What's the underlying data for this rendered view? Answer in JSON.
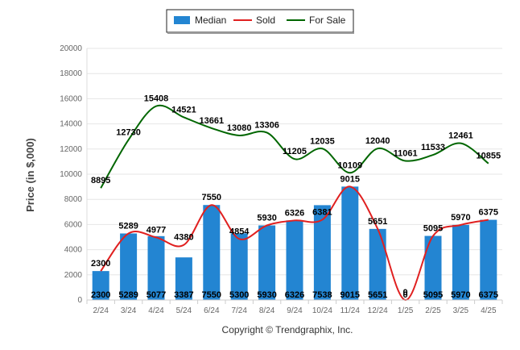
{
  "chart_data": {
    "type": "bar",
    "ylabel": "Price (in $,000)",
    "ylim": [
      0,
      20000
    ],
    "yticks": [
      0,
      2000,
      4000,
      6000,
      8000,
      10000,
      12000,
      14000,
      16000,
      18000,
      20000
    ],
    "categories": [
      "2/24",
      "3/24",
      "4/24",
      "5/24",
      "6/24",
      "7/24",
      "8/24",
      "9/24",
      "10/24",
      "11/24",
      "12/24",
      "1/25",
      "2/25",
      "3/25",
      "4/25"
    ],
    "series": [
      {
        "name": "Median",
        "kind": "bar",
        "color": "#2385d2",
        "values": [
          2300,
          5289,
          5077,
          3387,
          7550,
          5300,
          5930,
          6326,
          7538,
          9015,
          5651,
          0,
          5095,
          5970,
          6375
        ]
      },
      {
        "name": "Sold",
        "kind": "line",
        "color": "#e02020",
        "values": [
          2300,
          5289,
          4977,
          4380,
          7550,
          4854,
          5930,
          6326,
          6381,
          9015,
          5651,
          0,
          5095,
          5970,
          6375
        ]
      },
      {
        "name": "For Sale",
        "kind": "line",
        "color": "#006600",
        "values": [
          8895,
          12730,
          15408,
          14521,
          13661,
          13080,
          13306,
          11205,
          12035,
          10109,
          12040,
          11061,
          11533,
          12461,
          10855
        ]
      }
    ],
    "grid": true,
    "legend": "top-center",
    "copyright": "Copyright © Trendgraphix, Inc."
  }
}
